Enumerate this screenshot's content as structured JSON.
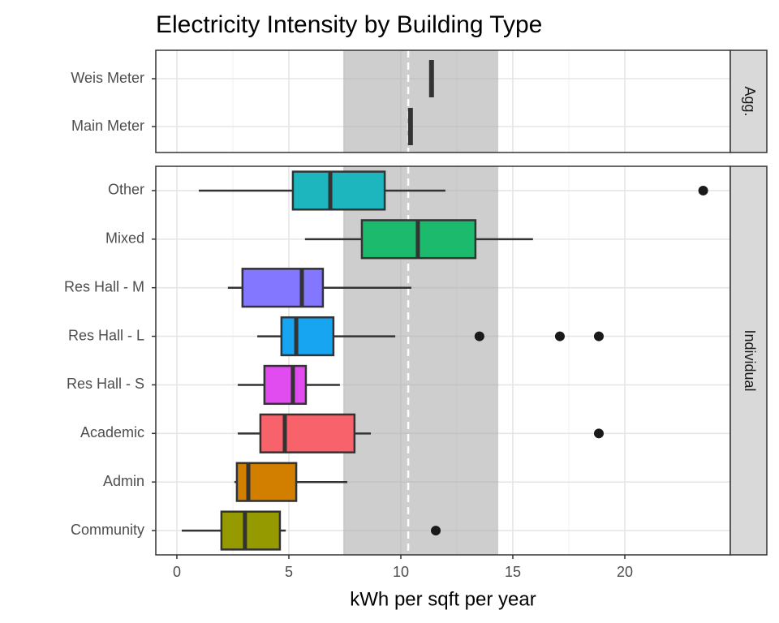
{
  "chart_data": {
    "type": "boxplot",
    "title": "Electricity Intensity by Building Type",
    "x_label": "kWh per sqft per year",
    "xlim": [
      -0.94,
      24.71
    ],
    "xticks": [
      0,
      5,
      10,
      15,
      20
    ],
    "grid": true,
    "reference_band": [
      7.43,
      14.35
    ],
    "reference_line": 10.33,
    "panels": [
      {
        "strip": "Agg.",
        "categories": [
          "Weis Meter",
          "Main Meter"
        ],
        "values": [
          11.37,
          10.43
        ]
      },
      {
        "strip": "Individual",
        "categories": [
          "Other",
          "Mixed",
          "Res Hall - M",
          "Res Hall - L",
          "Res Hall - S",
          "Academic",
          "Admin",
          "Community"
        ],
        "boxes": [
          {
            "min": 0.98,
            "q1": 5.18,
            "median": 6.85,
            "q3": 9.28,
            "max": 11.99,
            "outliers": [
              23.5
            ],
            "color": "#1db5be"
          },
          {
            "min": 5.72,
            "q1": 8.26,
            "median": 10.76,
            "q3": 13.33,
            "max": 15.9,
            "outliers": [],
            "color": "#1cba6d"
          },
          {
            "min": 2.28,
            "q1": 2.93,
            "median": 5.58,
            "q3": 6.52,
            "max": 10.47,
            "outliers": [],
            "color": "#8377ff"
          },
          {
            "min": 3.59,
            "q1": 4.67,
            "median": 5.33,
            "q3": 6.99,
            "max": 9.75,
            "outliers": [
              13.51,
              17.1,
              18.84
            ],
            "color": "#17a4f0"
          },
          {
            "min": 2.72,
            "q1": 3.91,
            "median": 5.18,
            "q3": 5.76,
            "max": 7.28,
            "outliers": [],
            "color": "#e04cf0"
          },
          {
            "min": 2.72,
            "q1": 3.73,
            "median": 4.82,
            "q3": 7.93,
            "max": 8.66,
            "outliers": [
              18.84
            ],
            "color": "#f8626a"
          },
          {
            "min": 2.57,
            "q1": 2.68,
            "median": 3.19,
            "q3": 5.33,
            "max": 7.61,
            "outliers": [],
            "color": "#d27f00"
          },
          {
            "min": 0.22,
            "q1": 1.99,
            "median": 3.04,
            "q3": 4.6,
            "max": 4.86,
            "outliers": [
              11.56
            ],
            "color": "#959a00"
          }
        ]
      }
    ]
  }
}
